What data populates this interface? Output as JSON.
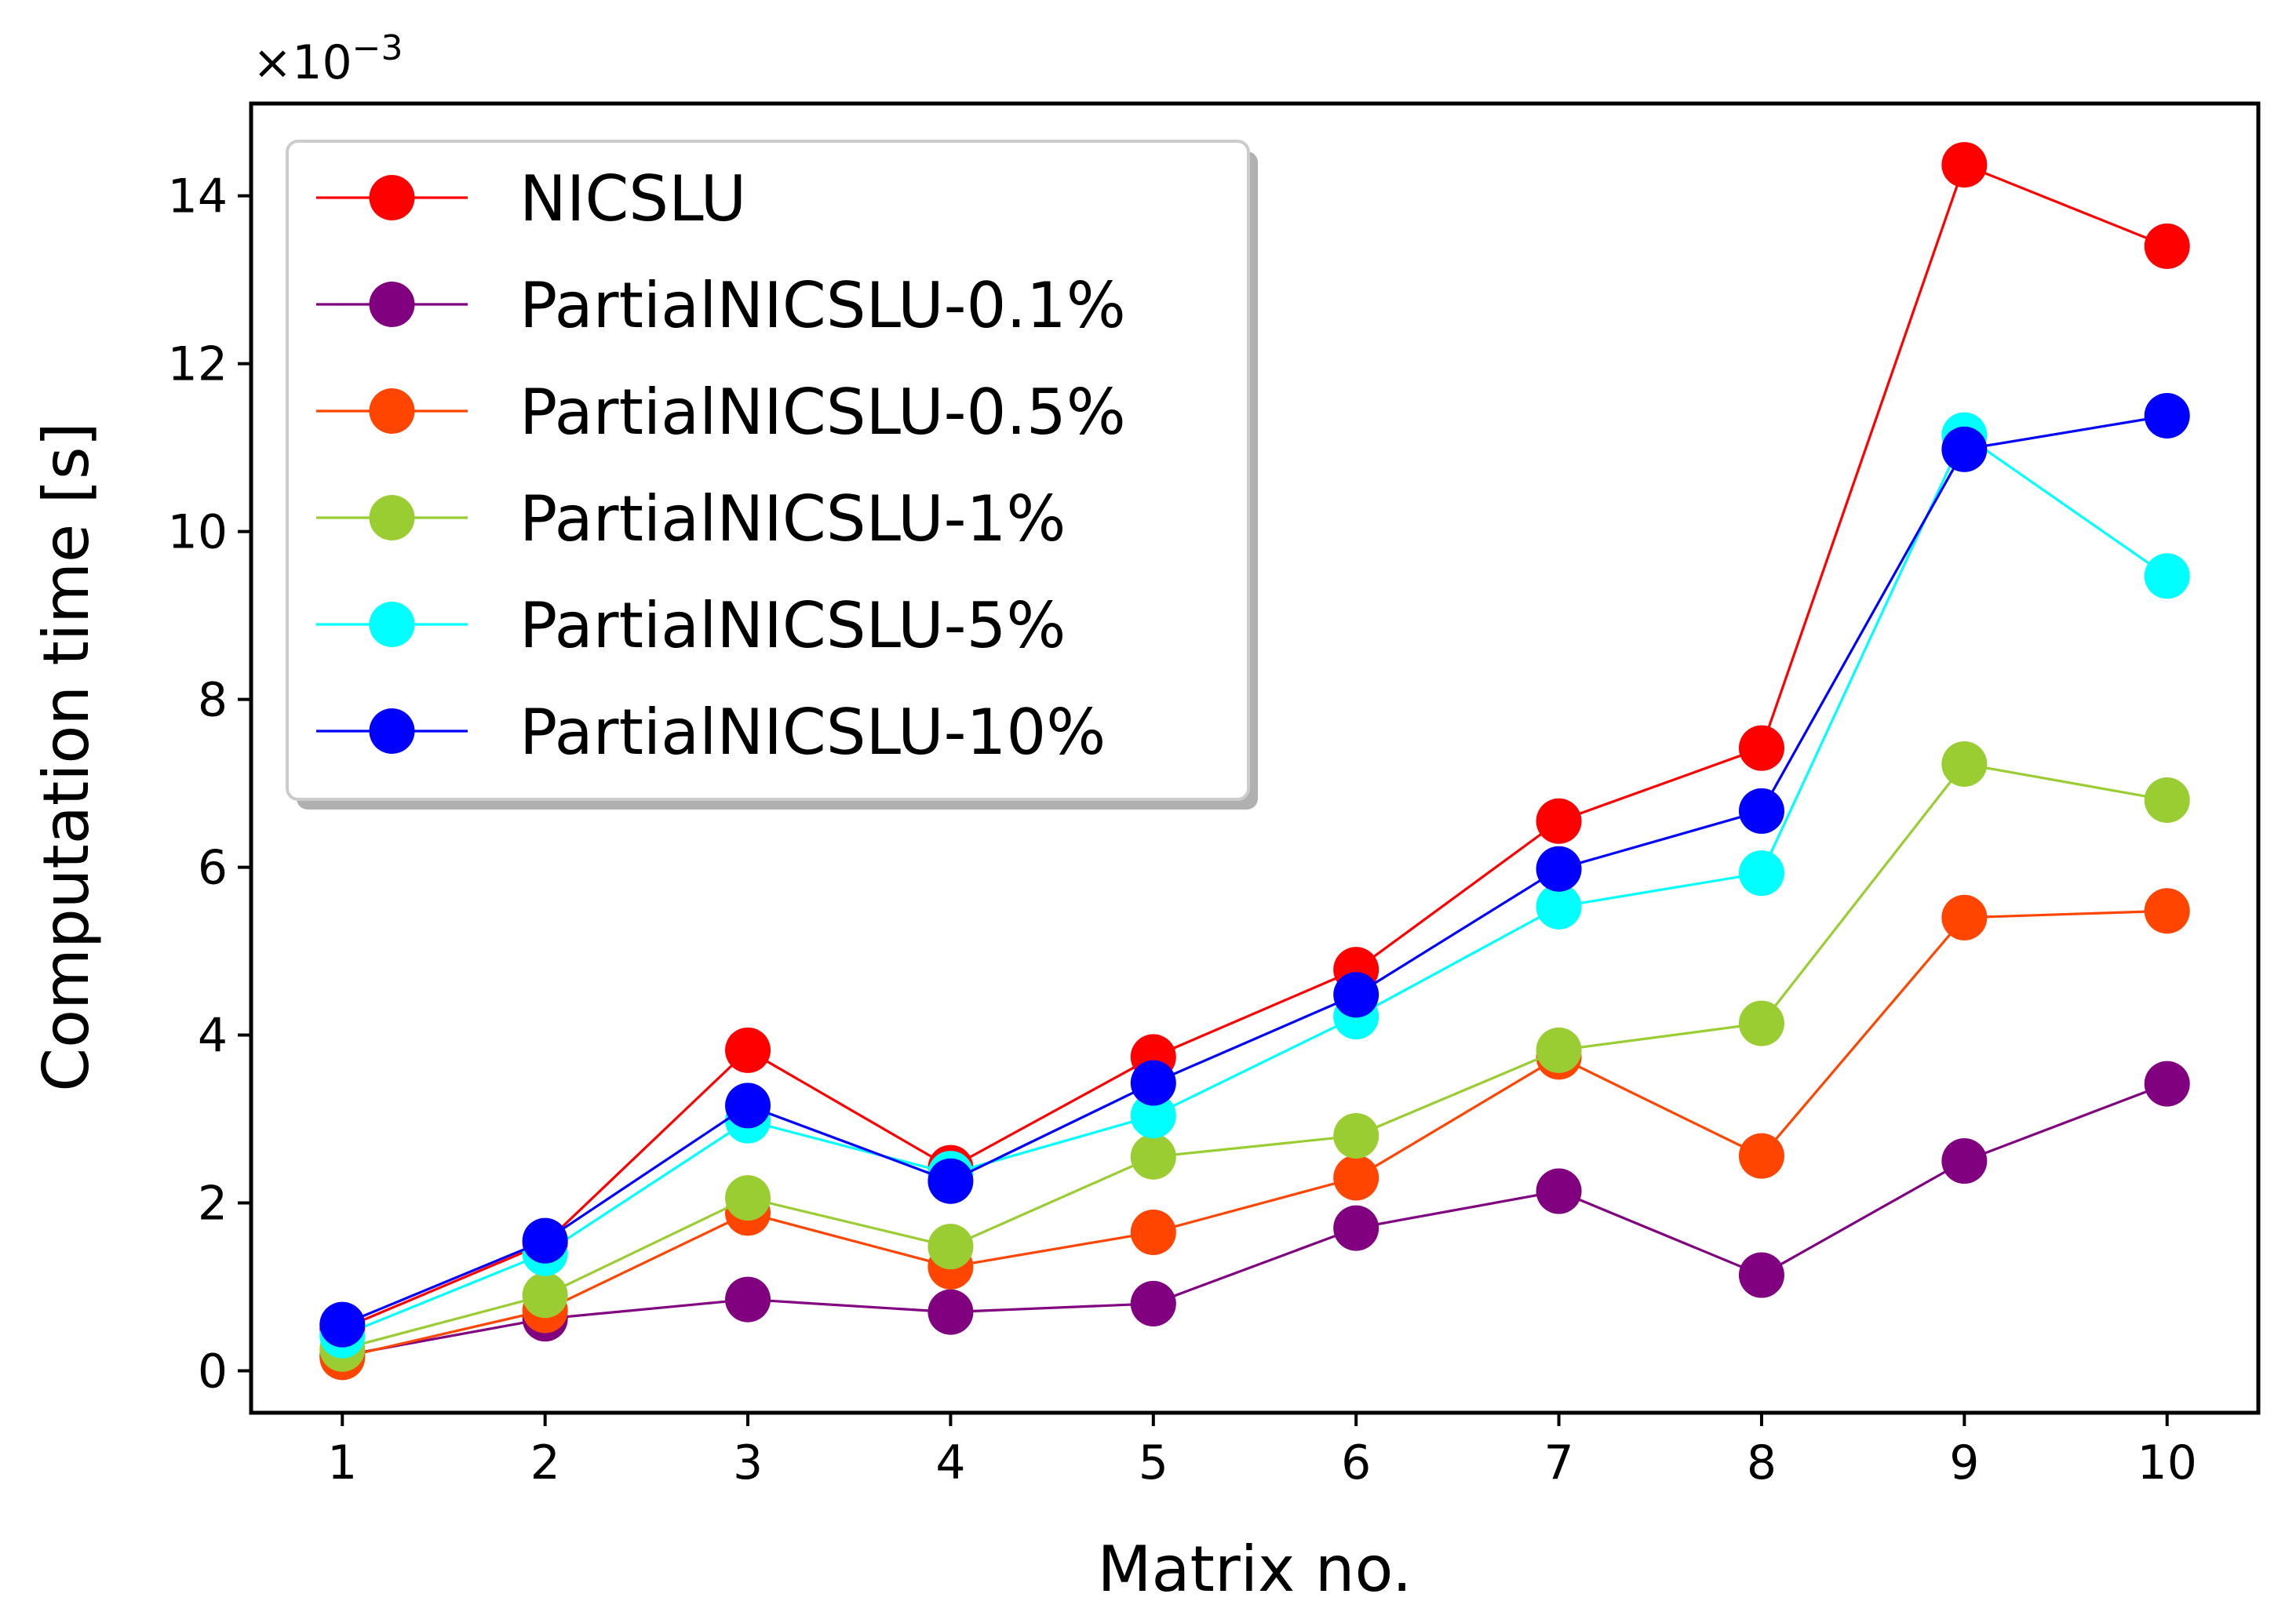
{
  "chart_data": {
    "type": "line",
    "title": "",
    "xlabel": "Matrix no.",
    "ylabel": "Computation time [s]",
    "y_multiplier": {
      "base": "×10",
      "exponent": "−3"
    },
    "x": [
      1,
      2,
      3,
      4,
      5,
      6,
      7,
      8,
      9,
      10
    ],
    "xlim": [
      0.55,
      10.45
    ],
    "ylim": [
      -0.5,
      15.1
    ],
    "yticks": [
      0,
      2,
      4,
      6,
      8,
      10,
      12,
      14
    ],
    "grid": false,
    "legend_position": "top-left",
    "series": [
      {
        "name": "NICSLU",
        "color": "#ff0000",
        "values": [
          0.5,
          1.52,
          3.82,
          2.42,
          3.74,
          4.78,
          6.55,
          7.42,
          14.37,
          13.4
        ]
      },
      {
        "name": "PartialNICSLU-0.1%",
        "color": "#800080",
        "values": [
          0.18,
          0.62,
          0.85,
          0.7,
          0.8,
          1.7,
          2.14,
          1.14,
          2.5,
          3.42
        ]
      },
      {
        "name": "PartialNICSLU-0.5%",
        "color": "#ff4500",
        "values": [
          0.16,
          0.72,
          1.88,
          1.24,
          1.65,
          2.3,
          3.74,
          2.56,
          5.4,
          5.48
        ]
      },
      {
        "name": "PartialNICSLU-1%",
        "color": "#9acd32",
        "values": [
          0.26,
          0.9,
          2.06,
          1.48,
          2.55,
          2.8,
          3.82,
          4.14,
          7.23,
          6.8
        ]
      },
      {
        "name": "PartialNICSLU-5%",
        "color": "#00ffff",
        "values": [
          0.42,
          1.4,
          2.98,
          2.35,
          3.04,
          4.22,
          5.53,
          5.93,
          11.15,
          9.47
        ]
      },
      {
        "name": "PartialNICSLU-10%",
        "color": "#0000ff",
        "values": [
          0.55,
          1.55,
          3.16,
          2.26,
          3.43,
          4.48,
          5.98,
          6.67,
          10.98,
          11.38
        ]
      }
    ]
  }
}
